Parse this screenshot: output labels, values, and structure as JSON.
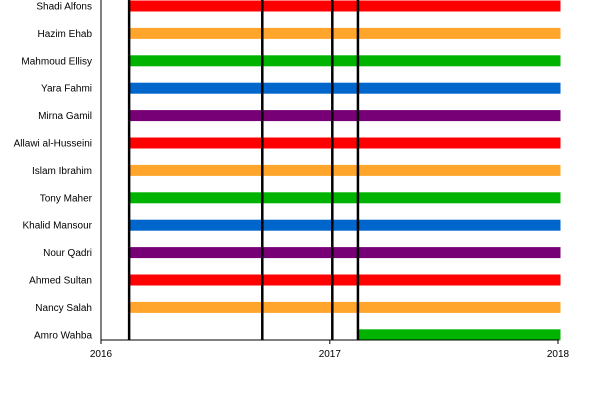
{
  "chart_data": {
    "type": "timeline",
    "title": "",
    "xlabel": "",
    "ylabel": "",
    "xlim": [
      "2016-01-01",
      "2018-01-01"
    ],
    "x_ticks": [
      "2016",
      "2017",
      "2018"
    ],
    "grid": false,
    "legend": "none",
    "members": [
      {
        "name": "Shadi Alfons",
        "start": "2016-02-15",
        "end": "2018-01-05",
        "color": "#ff0000"
      },
      {
        "name": "Hazim Ehab",
        "start": "2016-02-15",
        "end": "2018-01-05",
        "color": "#ffa52c"
      },
      {
        "name": "Mahmoud Ellisy",
        "start": "2016-02-15",
        "end": "2018-01-05",
        "color": "#00b300"
      },
      {
        "name": "Yara Fahmi",
        "start": "2016-02-15",
        "end": "2018-01-05",
        "color": "#0066cc"
      },
      {
        "name": "Mirna Gamil",
        "start": "2016-02-15",
        "end": "2018-01-05",
        "color": "#770077"
      },
      {
        "name": "Allawi al-Husseini",
        "start": "2016-02-15",
        "end": "2018-01-05",
        "color": "#ff0000"
      },
      {
        "name": "Islam Ibrahim",
        "start": "2016-02-15",
        "end": "2018-01-05",
        "color": "#ffa52c"
      },
      {
        "name": "Tony Maher",
        "start": "2016-02-15",
        "end": "2018-01-05",
        "color": "#00b300"
      },
      {
        "name": "Khalid Mansour",
        "start": "2016-02-15",
        "end": "2018-01-05",
        "color": "#0066cc"
      },
      {
        "name": "Nour Qadri",
        "start": "2016-02-15",
        "end": "2018-01-05",
        "color": "#770077"
      },
      {
        "name": "Ahmed Sultan",
        "start": "2016-02-15",
        "end": "2018-01-05",
        "color": "#ff0000"
      },
      {
        "name": "Nancy Salah",
        "start": "2016-02-15",
        "end": "2018-01-05",
        "color": "#ffa52c"
      },
      {
        "name": "Amro Wahba",
        "start": "2017-02-15",
        "end": "2018-01-05",
        "color": "#00b300"
      }
    ],
    "events": [
      "2016-02-15",
      "2016-09-15",
      "2017-01-05",
      "2017-02-15"
    ]
  }
}
